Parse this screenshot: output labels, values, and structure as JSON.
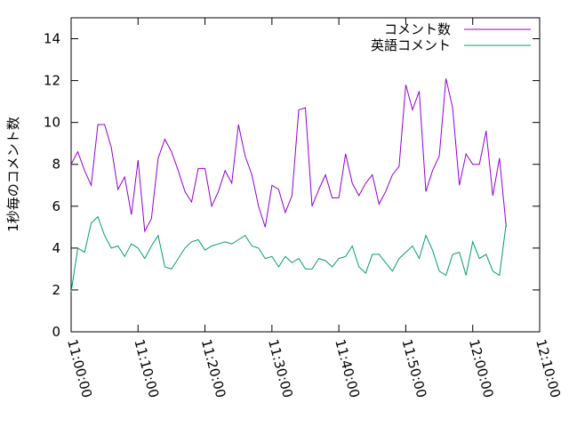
{
  "chart_data": {
    "type": "line",
    "ylabel": "1秒毎のコメント数",
    "x": [
      "11:00:00",
      "11:01:00",
      "11:02:00",
      "11:03:00",
      "11:04:00",
      "11:05:00",
      "11:06:00",
      "11:07:00",
      "11:08:00",
      "11:09:00",
      "11:10:00",
      "11:11:00",
      "11:12:00",
      "11:13:00",
      "11:14:00",
      "11:15:00",
      "11:16:00",
      "11:17:00",
      "11:18:00",
      "11:19:00",
      "11:20:00",
      "11:21:00",
      "11:22:00",
      "11:23:00",
      "11:24:00",
      "11:25:00",
      "11:26:00",
      "11:27:00",
      "11:28:00",
      "11:29:00",
      "11:30:00",
      "11:31:00",
      "11:32:00",
      "11:33:00",
      "11:34:00",
      "11:35:00",
      "11:36:00",
      "11:37:00",
      "11:38:00",
      "11:39:00",
      "11:40:00",
      "11:41:00",
      "11:42:00",
      "11:43:00",
      "11:44:00",
      "11:45:00",
      "11:46:00",
      "11:47:00",
      "11:48:00",
      "11:49:00",
      "11:50:00",
      "11:51:00",
      "11:52:00",
      "11:53:00",
      "11:54:00",
      "11:55:00",
      "11:56:00",
      "11:57:00",
      "11:58:00",
      "11:59:00",
      "12:00:00",
      "12:01:00",
      "12:02:00",
      "12:03:00",
      "12:04:00",
      "12:05:00"
    ],
    "series": [
      {
        "name": "コメント数",
        "color": "#9400d3",
        "values": [
          8.0,
          8.6,
          7.7,
          7.0,
          9.9,
          9.9,
          8.8,
          6.8,
          7.4,
          5.6,
          8.2,
          4.8,
          5.4,
          8.3,
          9.2,
          8.6,
          7.7,
          6.7,
          6.2,
          7.8,
          7.8,
          6.0,
          6.7,
          7.7,
          7.1,
          9.9,
          8.4,
          7.5,
          6.0,
          5.0,
          7.0,
          6.8,
          5.7,
          6.5,
          10.6,
          10.7,
          6.0,
          6.8,
          7.5,
          6.4,
          6.4,
          8.5,
          7.1,
          6.5,
          7.1,
          7.5,
          6.1,
          6.7,
          7.5,
          7.9,
          11.8,
          10.6,
          11.5,
          6.7,
          7.7,
          8.4,
          12.1,
          10.7,
          7.0,
          8.5,
          8.0,
          8.0,
          9.6,
          6.5,
          8.3,
          5.0
        ]
      },
      {
        "name": "英語コメント",
        "color": "#009e73",
        "values": [
          1.9,
          4.0,
          3.8,
          5.2,
          5.5,
          4.6,
          4.0,
          4.1,
          3.6,
          4.2,
          4.0,
          3.5,
          4.1,
          4.6,
          3.1,
          3.0,
          3.5,
          4.0,
          4.3,
          4.4,
          3.9,
          4.1,
          4.2,
          4.3,
          4.2,
          4.4,
          4.6,
          4.1,
          4.0,
          3.5,
          3.6,
          3.1,
          3.6,
          3.3,
          3.5,
          3.0,
          3.0,
          3.5,
          3.4,
          3.1,
          3.5,
          3.6,
          4.1,
          3.1,
          2.8,
          3.7,
          3.7,
          3.3,
          2.9,
          3.5,
          3.8,
          4.1,
          3.5,
          4.6,
          3.9,
          2.9,
          2.7,
          3.7,
          3.8,
          2.7,
          4.3,
          3.5,
          3.7,
          2.9,
          2.7,
          5.2
        ]
      }
    ],
    "xlim": [
      "11:00:00",
      "12:10:00"
    ],
    "xticks": [
      "11:00:00",
      "11:10:00",
      "11:20:00",
      "11:30:00",
      "11:40:00",
      "11:50:00",
      "12:00:00",
      "12:10:00"
    ],
    "ylim": [
      0,
      15
    ],
    "yticks": [
      0,
      2,
      4,
      6,
      8,
      10,
      12,
      14
    ],
    "legend": "top-right"
  }
}
